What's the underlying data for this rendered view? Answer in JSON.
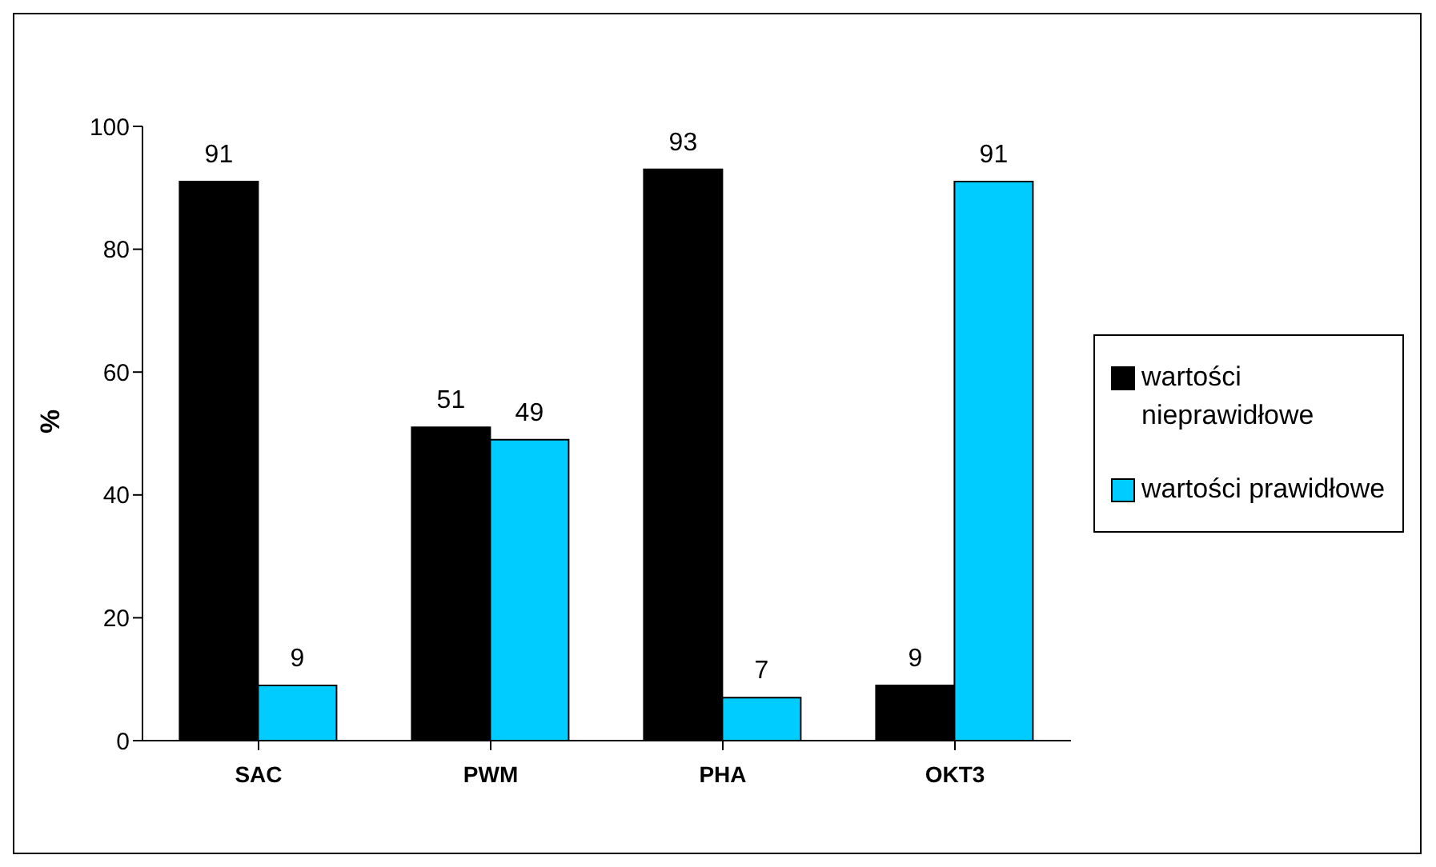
{
  "chart_data": {
    "type": "bar",
    "ylabel": "%",
    "categories": [
      "SAC",
      "PWM",
      "PHA",
      "OKT3"
    ],
    "series": [
      {
        "name": "wartości nieprawidłowe",
        "color": "#000000",
        "values": [
          91,
          51,
          93,
          9
        ]
      },
      {
        "name": "wartości prawidłowe",
        "color": "#00ccff",
        "values": [
          9,
          49,
          7,
          91
        ]
      }
    ],
    "ylim": [
      0,
      100
    ],
    "yticks": [
      0,
      20,
      40,
      60,
      80,
      100
    ],
    "grid": false,
    "legend": "right",
    "data_labels": true
  }
}
